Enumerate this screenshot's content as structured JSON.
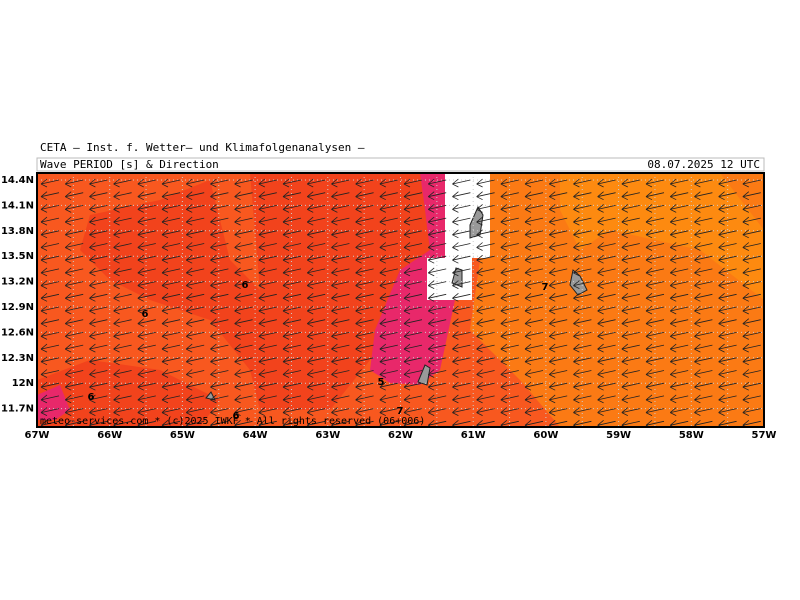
{
  "header": {
    "title": "CETA — Inst. f. Wetter— und Klimafolgenanalysen —",
    "subtitle": "Wave PERIOD [s] & Direction",
    "valid_time": "08.07.2025 12 UTC"
  },
  "map": {
    "lat_labels": [
      "14.4N",
      "14.1N",
      "13.8N",
      "13.5N",
      "13.2N",
      "12.9N",
      "12.6N",
      "12.3N",
      "12N",
      "11.7N"
    ],
    "lon_labels": [
      "67W",
      "66W",
      "65W",
      "64W",
      "63W",
      "62W",
      "61W",
      "60W",
      "59W",
      "58W",
      "57W"
    ],
    "contour_labels": [
      "6",
      "6",
      "7",
      "5",
      "6",
      "6",
      "7"
    ],
    "footer": "meteo-services.com * (c)2025 IWKF * All rights reserved (06+006)"
  }
}
